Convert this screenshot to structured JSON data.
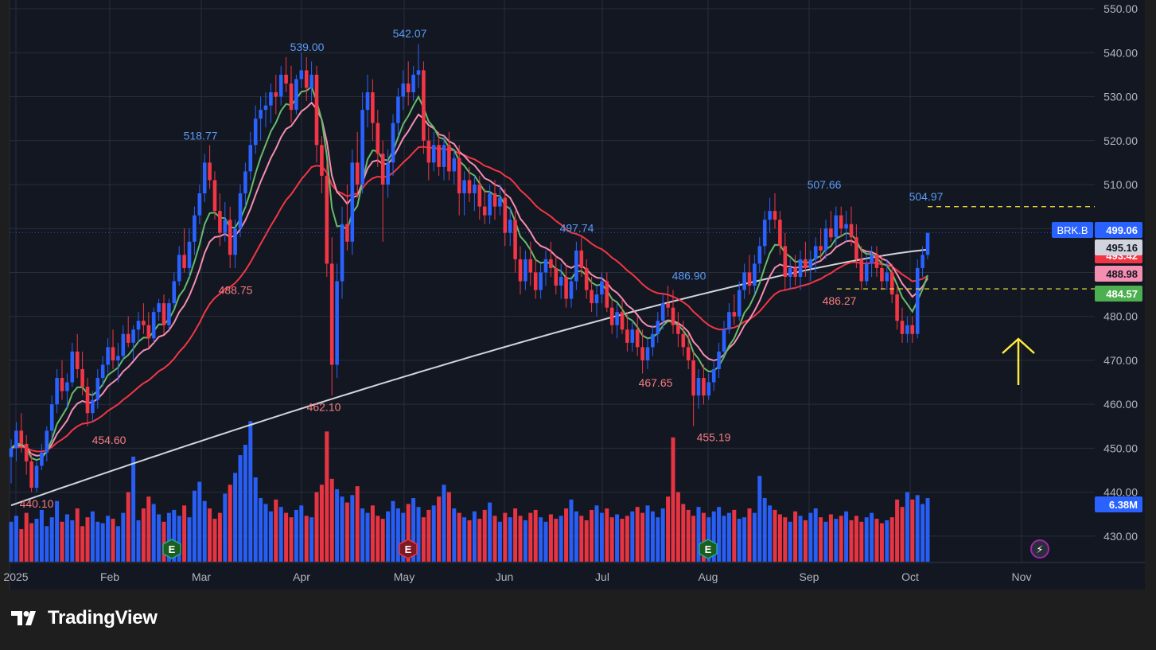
{
  "brand": {
    "name": "TradingView",
    "logo_icon": "tradingview-logo-icon"
  },
  "colors": {
    "background": "#131722",
    "outer": "#1e1e1e",
    "grid": "#2a2e39",
    "up": "#2962ff",
    "down": "#f23645",
    "ema_short": "#66bb6a",
    "ema_mid": "#f48fb1",
    "sma_long_red": "#f23645",
    "sma_200": "#d1d4dc",
    "high_label": "#5b9cf6",
    "low_label": "#f77c80",
    "dashed": "#ffeb3b",
    "arrow": "#ffeb3b"
  },
  "chart_data": {
    "type": "candlestick",
    "symbol": "BRK.B",
    "y_axis": {
      "min": 424,
      "max": 552,
      "ticks": [
        550.0,
        540.0,
        530.0,
        520.0,
        510.0,
        500.0,
        490.0,
        480.0,
        470.0,
        460.0,
        450.0,
        440.0,
        430.0
      ]
    },
    "x_axis": {
      "labels": [
        "2025",
        "Feb",
        "Mar",
        "Apr",
        "May",
        "Jun",
        "Jul",
        "Aug",
        "Sep",
        "Oct",
        "Nov"
      ]
    },
    "candles": [
      [
        448,
        452,
        442,
        450
      ],
      [
        450,
        456,
        447,
        454
      ],
      [
        454,
        458,
        449,
        451
      ],
      [
        451,
        453,
        444,
        447
      ],
      [
        447,
        449,
        440,
        441
      ],
      [
        441,
        447,
        440,
        446
      ],
      [
        446,
        451,
        445,
        449
      ],
      [
        449,
        455,
        447,
        454
      ],
      [
        454,
        462,
        452,
        460
      ],
      [
        460,
        468,
        458,
        466
      ],
      [
        466,
        470,
        461,
        463
      ],
      [
        463,
        467,
        459,
        465
      ],
      [
        465,
        474,
        464,
        472
      ],
      [
        472,
        476,
        466,
        468
      ],
      [
        468,
        472,
        462,
        464
      ],
      [
        464,
        466,
        455,
        458
      ],
      [
        458,
        463,
        456,
        461
      ],
      [
        461,
        468,
        459,
        466
      ],
      [
        466,
        471,
        464,
        469
      ],
      [
        469,
        475,
        467,
        473
      ],
      [
        473,
        477,
        468,
        470
      ],
      [
        470,
        474,
        465,
        471
      ],
      [
        471,
        478,
        470,
        476
      ],
      [
        476,
        480,
        473,
        474
      ],
      [
        474,
        478,
        470,
        477
      ],
      [
        477,
        481,
        474,
        479
      ],
      [
        479,
        483,
        476,
        478
      ],
      [
        478,
        481,
        473,
        475
      ],
      [
        475,
        482,
        474,
        481
      ],
      [
        481,
        484,
        479,
        483
      ],
      [
        483,
        485,
        476,
        478
      ],
      [
        478,
        484,
        477,
        483
      ],
      [
        483,
        490,
        482,
        488
      ],
      [
        488,
        496,
        487,
        494
      ],
      [
        494,
        500,
        490,
        491
      ],
      [
        491,
        500,
        489,
        497
      ],
      [
        497,
        505,
        494,
        503
      ],
      [
        503,
        510,
        501,
        508
      ],
      [
        508,
        517,
        506,
        515
      ],
      [
        515,
        519,
        509,
        511
      ],
      [
        511,
        513,
        502,
        504
      ],
      [
        504,
        508,
        496,
        499
      ],
      [
        499,
        506,
        497,
        502
      ],
      [
        502,
        505,
        491,
        494
      ],
      [
        494,
        502,
        491,
        500
      ],
      [
        500,
        510,
        498,
        508
      ],
      [
        508,
        515,
        505,
        513
      ],
      [
        513,
        522,
        511,
        519
      ],
      [
        519,
        528,
        517,
        525
      ],
      [
        525,
        530,
        520,
        527
      ],
      [
        527,
        531,
        523,
        528
      ],
      [
        528,
        533,
        524,
        531
      ],
      [
        531,
        535,
        526,
        530
      ],
      [
        530,
        537,
        528,
        535
      ],
      [
        535,
        539,
        531,
        533
      ],
      [
        533,
        537,
        524,
        527
      ],
      [
        527,
        535,
        526,
        534
      ],
      [
        534,
        540,
        532,
        536
      ],
      [
        536,
        539,
        529,
        532
      ],
      [
        532,
        538,
        529,
        535
      ],
      [
        535,
        537,
        515,
        519
      ],
      [
        519,
        521,
        508,
        512
      ],
      [
        512,
        515,
        489,
        492
      ],
      [
        492,
        498,
        462,
        469
      ],
      [
        469,
        492,
        466,
        488
      ],
      [
        488,
        505,
        484,
        501
      ],
      [
        501,
        510,
        495,
        497
      ],
      [
        497,
        518,
        494,
        515
      ],
      [
        515,
        522,
        507,
        510
      ],
      [
        510,
        531,
        508,
        527
      ],
      [
        527,
        535,
        523,
        531
      ],
      [
        531,
        534,
        520,
        524
      ],
      [
        524,
        527,
        514,
        517
      ],
      [
        517,
        520,
        497,
        510
      ],
      [
        510,
        518,
        507,
        515
      ],
      [
        515,
        526,
        512,
        524
      ],
      [
        524,
        532,
        521,
        530
      ],
      [
        530,
        536,
        527,
        533
      ],
      [
        533,
        538,
        528,
        531
      ],
      [
        531,
        537,
        529,
        535
      ],
      [
        535,
        542,
        532,
        536
      ],
      [
        536,
        538,
        517,
        520
      ],
      [
        520,
        523,
        511,
        515
      ],
      [
        515,
        522,
        513,
        519
      ],
      [
        519,
        522,
        512,
        514
      ],
      [
        514,
        521,
        511,
        519
      ],
      [
        519,
        522,
        511,
        513
      ],
      [
        513,
        518,
        510,
        516
      ],
      [
        516,
        519,
        503,
        508
      ],
      [
        508,
        513,
        503,
        511
      ],
      [
        511,
        514,
        506,
        508
      ],
      [
        508,
        512,
        504,
        510
      ],
      [
        510,
        512,
        502,
        505
      ],
      [
        505,
        509,
        501,
        503
      ],
      [
        503,
        510,
        501,
        508
      ],
      [
        508,
        511,
        502,
        505
      ],
      [
        505,
        510,
        503,
        507
      ],
      [
        507,
        509,
        496,
        499
      ],
      [
        499,
        505,
        496,
        502
      ],
      [
        502,
        504,
        490,
        493
      ],
      [
        493,
        496,
        485,
        488
      ],
      [
        488,
        495,
        486,
        493
      ],
      [
        493,
        497,
        487,
        490
      ],
      [
        490,
        493,
        484,
        486
      ],
      [
        486,
        492,
        484,
        490
      ],
      [
        490,
        495,
        487,
        493
      ],
      [
        493,
        497,
        489,
        491
      ],
      [
        491,
        494,
        485,
        487
      ],
      [
        487,
        492,
        484,
        489
      ],
      [
        489,
        492,
        482,
        484
      ],
      [
        484,
        489,
        482,
        488
      ],
      [
        488,
        497,
        486,
        495
      ],
      [
        495,
        498,
        489,
        491
      ],
      [
        491,
        493,
        484,
        486
      ],
      [
        486,
        489,
        481,
        483
      ],
      [
        483,
        487,
        480,
        485
      ],
      [
        485,
        490,
        483,
        488
      ],
      [
        488,
        490,
        481,
        482
      ],
      [
        482,
        484,
        476,
        478
      ],
      [
        478,
        483,
        475,
        481
      ],
      [
        481,
        484,
        476,
        477
      ],
      [
        477,
        481,
        472,
        474
      ],
      [
        474,
        479,
        472,
        477
      ],
      [
        477,
        480,
        471,
        473
      ],
      [
        473,
        477,
        467,
        470
      ],
      [
        470,
        475,
        468,
        473
      ],
      [
        473,
        478,
        471,
        476
      ],
      [
        476,
        481,
        474,
        479
      ],
      [
        479,
        485,
        477,
        483
      ],
      [
        483,
        487,
        480,
        482
      ],
      [
        482,
        486,
        476,
        478
      ],
      [
        478,
        481,
        473,
        476
      ],
      [
        476,
        479,
        471,
        473
      ],
      [
        473,
        476,
        468,
        470
      ],
      [
        470,
        472,
        455,
        462
      ],
      [
        462,
        468,
        459,
        466
      ],
      [
        466,
        469,
        460,
        462
      ],
      [
        462,
        467,
        461,
        465
      ],
      [
        465,
        470,
        463,
        468
      ],
      [
        468,
        474,
        466,
        472
      ],
      [
        472,
        479,
        471,
        477
      ],
      [
        477,
        483,
        476,
        481
      ],
      [
        481,
        485,
        478,
        480
      ],
      [
        480,
        488,
        479,
        486
      ],
      [
        486,
        492,
        484,
        490
      ],
      [
        490,
        494,
        485,
        487
      ],
      [
        487,
        494,
        485,
        492
      ],
      [
        492,
        498,
        490,
        496
      ],
      [
        496,
        504,
        494,
        502
      ],
      [
        502,
        507,
        499,
        504
      ],
      [
        504,
        508,
        500,
        502
      ],
      [
        502,
        504,
        494,
        496
      ],
      [
        496,
        499,
        486,
        489
      ],
      [
        489,
        493,
        486,
        491
      ],
      [
        491,
        494,
        487,
        489
      ],
      [
        489,
        495,
        486,
        493
      ],
      [
        493,
        497,
        489,
        491
      ],
      [
        491,
        495,
        488,
        493
      ],
      [
        493,
        498,
        490,
        496
      ],
      [
        496,
        500,
        493,
        495
      ],
      [
        495,
        502,
        493,
        500
      ],
      [
        500,
        504,
        497,
        498
      ],
      [
        498,
        505,
        496,
        503
      ],
      [
        503,
        505,
        498,
        500
      ],
      [
        500,
        504,
        497,
        501
      ],
      [
        501,
        505,
        496,
        498
      ],
      [
        498,
        501,
        491,
        493
      ],
      [
        493,
        496,
        486,
        488
      ],
      [
        488,
        494,
        487,
        492
      ],
      [
        492,
        496,
        489,
        494
      ],
      [
        494,
        496,
        489,
        491
      ],
      [
        491,
        494,
        486,
        488
      ],
      [
        488,
        493,
        486,
        490
      ],
      [
        490,
        492,
        483,
        485
      ],
      [
        485,
        487,
        477,
        479
      ],
      [
        479,
        482,
        474,
        476
      ],
      [
        476,
        480,
        474,
        478
      ],
      [
        478,
        480,
        474,
        476
      ],
      [
        476,
        493,
        475,
        491
      ],
      [
        491,
        496,
        489,
        494
      ],
      [
        494,
        499,
        493,
        499
      ]
    ],
    "volume_profile": [
      0.27,
      0.31,
      0.22,
      0.33,
      0.26,
      0.29,
      0.35,
      0.24,
      0.3,
      0.41,
      0.27,
      0.32,
      0.28,
      0.36,
      0.24,
      0.3,
      0.34,
      0.27,
      0.26,
      0.31,
      0.29,
      0.24,
      0.33,
      0.47,
      0.71,
      0.28,
      0.36,
      0.44,
      0.39,
      0.32,
      0.27,
      0.33,
      0.35,
      0.31,
      0.38,
      0.3,
      0.48,
      0.54,
      0.41,
      0.36,
      0.29,
      0.33,
      0.46,
      0.52,
      0.6,
      0.72,
      0.79,
      0.95,
      0.57,
      0.43,
      0.39,
      0.34,
      0.42,
      0.37,
      0.33,
      0.3,
      0.35,
      0.38,
      0.31,
      0.3,
      0.47,
      0.52,
      0.88,
      0.56,
      0.49,
      0.44,
      0.4,
      0.45,
      0.51,
      0.36,
      0.33,
      0.38,
      0.31,
      0.29,
      0.34,
      0.41,
      0.36,
      0.33,
      0.39,
      0.43,
      0.37,
      0.3,
      0.35,
      0.38,
      0.44,
      0.52,
      0.47,
      0.36,
      0.33,
      0.3,
      0.28,
      0.34,
      0.29,
      0.35,
      0.4,
      0.31,
      0.27,
      0.33,
      0.3,
      0.36,
      0.31,
      0.28,
      0.33,
      0.35,
      0.3,
      0.27,
      0.32,
      0.29,
      0.31,
      0.36,
      0.42,
      0.34,
      0.31,
      0.28,
      0.35,
      0.38,
      0.33,
      0.36,
      0.3,
      0.32,
      0.29,
      0.31,
      0.34,
      0.37,
      0.33,
      0.38,
      0.34,
      0.3,
      0.36,
      0.44,
      0.84,
      0.47,
      0.39,
      0.35,
      0.31,
      0.37,
      0.33,
      0.3,
      0.34,
      0.37,
      0.31,
      0.33,
      0.35,
      0.29,
      0.3,
      0.36,
      0.33,
      0.58,
      0.43,
      0.38,
      0.35,
      0.32,
      0.3,
      0.27,
      0.34,
      0.31,
      0.28,
      0.33,
      0.36,
      0.3,
      0.27,
      0.32,
      0.29,
      0.31,
      0.34,
      0.28,
      0.31,
      0.27,
      0.3,
      0.33,
      0.29,
      0.26,
      0.28,
      0.3,
      0.42,
      0.37,
      0.47,
      0.42,
      0.45,
      0.39,
      0.43,
      0.37,
      0.45,
      0.41
    ],
    "moving_averages": [
      {
        "key": "sma200",
        "label": "495.16",
        "period": 200
      },
      {
        "key": "sma50",
        "label": "493.42",
        "period": 50
      },
      {
        "key": "ema20",
        "label": "488.98",
        "period": 20
      },
      {
        "key": "ema10",
        "label": "484.57",
        "period": 10
      }
    ],
    "price_tag": "499.06",
    "volume_tag": "6.38M",
    "last_price": 499.06,
    "annotations": [
      {
        "text": "440.10",
        "value": 440.1,
        "kind": "low"
      },
      {
        "text": "454.60",
        "value": 454.6,
        "kind": "low"
      },
      {
        "text": "518.77",
        "value": 518.77,
        "kind": "high"
      },
      {
        "text": "488.75",
        "value": 488.75,
        "kind": "low"
      },
      {
        "text": "539.00",
        "value": 539.0,
        "kind": "high"
      },
      {
        "text": "462.10",
        "value": 462.1,
        "kind": "low"
      },
      {
        "text": "542.07",
        "value": 542.07,
        "kind": "high"
      },
      {
        "text": "497.74",
        "value": 497.74,
        "kind": "high"
      },
      {
        "text": "467.65",
        "value": 467.65,
        "kind": "low"
      },
      {
        "text": "486.90",
        "value": 486.9,
        "kind": "high"
      },
      {
        "text": "455.19",
        "value": 455.19,
        "kind": "low"
      },
      {
        "text": "507.66",
        "value": 507.66,
        "kind": "high"
      },
      {
        "text": "486.27",
        "value": 486.27,
        "kind": "low"
      },
      {
        "text": "504.97",
        "value": 504.97,
        "kind": "high"
      }
    ],
    "reference_lines": [
      {
        "value": 504.97,
        "style": "dashed-yellow"
      },
      {
        "value": 486.27,
        "style": "dashed-yellow"
      },
      {
        "value": 499.06,
        "style": "dotted-blue"
      }
    ],
    "event_markers": [
      {
        "label": "E",
        "kind": "earnings-reported"
      },
      {
        "label": "E",
        "kind": "earnings-missed"
      },
      {
        "label": "E",
        "kind": "earnings-reported"
      },
      {
        "label": "⚡",
        "kind": "upcoming-event"
      }
    ],
    "arrow": {
      "direction": "up",
      "color": "yellow"
    }
  }
}
